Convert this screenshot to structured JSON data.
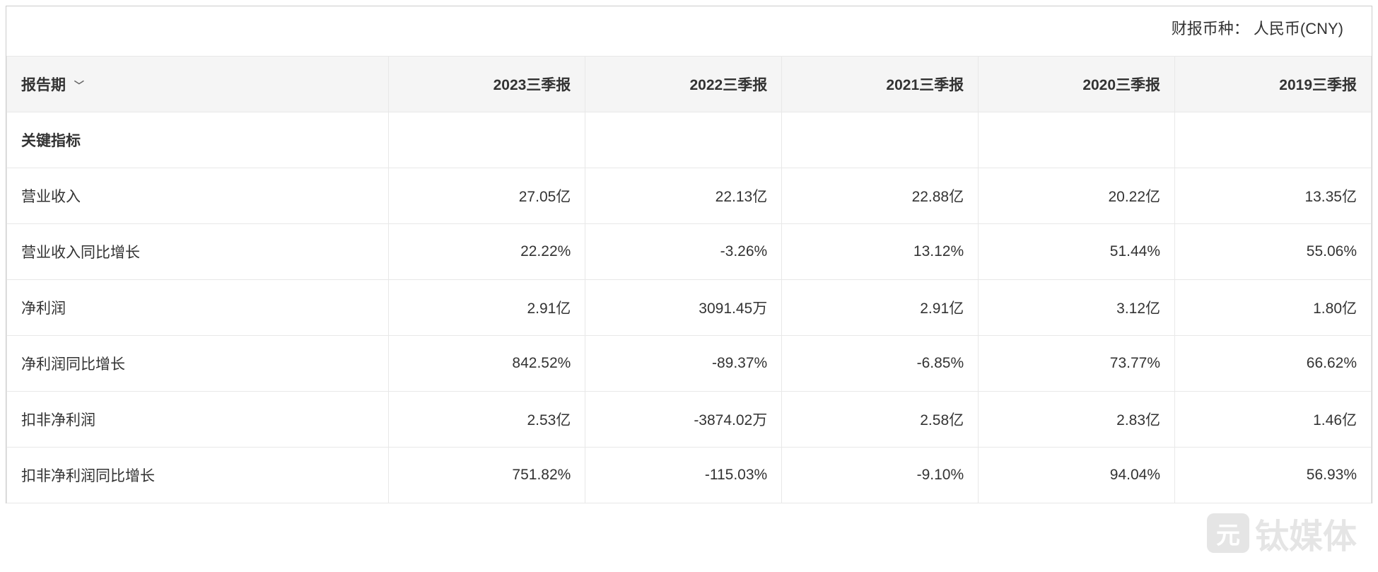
{
  "currency_label": "财报币种：  人民币(CNY)",
  "header": {
    "period_label": "报告期",
    "columns": [
      "2023三季报",
      "2022三季报",
      "2021三季报",
      "2020三季报",
      "2019三季报"
    ]
  },
  "section_title": "关键指标",
  "rows": [
    {
      "label": "营业收入",
      "values": [
        "27.05亿",
        "22.13亿",
        "22.88亿",
        "20.22亿",
        "13.35亿"
      ]
    },
    {
      "label": "营业收入同比增长",
      "values": [
        "22.22%",
        "-3.26%",
        "13.12%",
        "51.44%",
        "55.06%"
      ]
    },
    {
      "label": "净利润",
      "values": [
        "2.91亿",
        "3091.45万",
        "2.91亿",
        "3.12亿",
        "1.80亿"
      ]
    },
    {
      "label": "净利润同比增长",
      "values": [
        "842.52%",
        "-89.37%",
        "-6.85%",
        "73.77%",
        "66.62%"
      ]
    },
    {
      "label": "扣非净利润",
      "values": [
        "2.53亿",
        "-3874.02万",
        "2.58亿",
        "2.83亿",
        "1.46亿"
      ]
    },
    {
      "label": "扣非净利润同比增长",
      "values": [
        "751.82%",
        "-115.03%",
        "-9.10%",
        "94.04%",
        "56.93%"
      ]
    }
  ],
  "watermark_text": "钛媒体",
  "styling": {
    "background_color": "#ffffff",
    "header_bg": "#f5f5f5",
    "border_color": "#e8e8e8",
    "outer_border_color": "#cccccc",
    "text_color": "#333333",
    "watermark_color": "rgba(180,180,180,0.35)",
    "font_size_body": 21,
    "font_size_currency": 22,
    "cell_padding": "24px 20px",
    "first_col_width_pct": 28,
    "data_col_width_pct": 14.4
  }
}
